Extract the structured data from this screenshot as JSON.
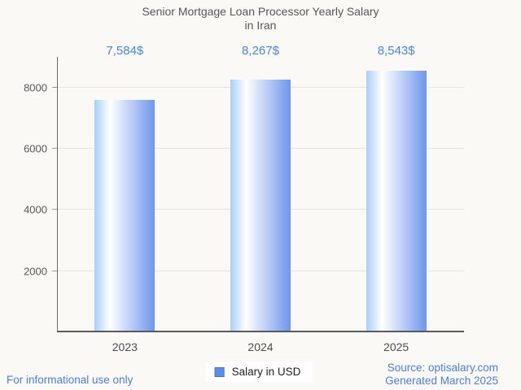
{
  "header": {
    "title_line1": "Senior Mortgage Loan Processor Yearly Salary",
    "title_line2": "in Iran"
  },
  "chart_data": {
    "type": "bar",
    "title": "Senior Mortgage Loan Processor Yearly Salary in Iran",
    "categories": [
      "2023",
      "2024",
      "2025"
    ],
    "values": [
      7584,
      8267,
      8543
    ],
    "value_labels": [
      "7,584$",
      "8,267$",
      "8,543$"
    ],
    "series_name": "Salary in USD",
    "xlabel": "",
    "ylabel": "",
    "yticks": [
      2000,
      4000,
      6000,
      8000
    ],
    "ylim": [
      0,
      9000
    ],
    "grid": true,
    "legend_position": "bottom",
    "bar_gradient": [
      "#a8cff9",
      "#ffffff",
      "#6e96ec"
    ],
    "value_label_color": "#4583ef",
    "axis_label_color": "#55565a"
  },
  "legend": {
    "label": "Salary in USD",
    "swatch_color": "#5c8ee8",
    "swatch_border": "#4273c9"
  },
  "footer": {
    "disclaimer": "For informational use only",
    "source": "Source: optisalary.com",
    "generated": "Generated March 2025",
    "link_color": "#4b7ce2"
  }
}
